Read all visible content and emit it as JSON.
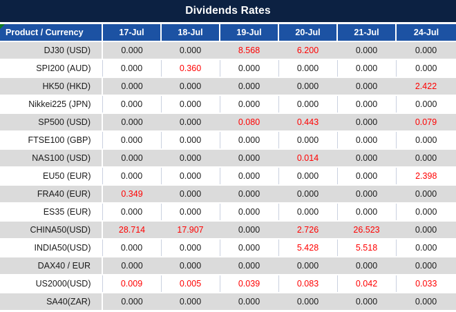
{
  "title": "Dividends Rates",
  "colors": {
    "title_bg": "#0c2142",
    "header_bg": "#1c52a3",
    "row_alt_bg": "#dbdbdb",
    "nonzero_value": "#ff0000",
    "text": "#1a1a1a",
    "error_indicator": "#0e7c1f"
  },
  "table": {
    "product_header": "Product / Currency",
    "date_columns": [
      "17-Jul",
      "18-Jul",
      "19-Jul",
      "20-Jul",
      "21-Jul",
      "24-Jul"
    ],
    "zero_value": "0.000",
    "rows": [
      {
        "product": "DJ30 (USD)",
        "values": [
          "0.000",
          "0.000",
          "8.568",
          "6.200",
          "0.000",
          "0.000"
        ]
      },
      {
        "product": "SPI200 (AUD)",
        "values": [
          "0.000",
          "0.360",
          "0.000",
          "0.000",
          "0.000",
          "0.000"
        ]
      },
      {
        "product": "HK50 (HKD)",
        "values": [
          "0.000",
          "0.000",
          "0.000",
          "0.000",
          "0.000",
          "2.422"
        ]
      },
      {
        "product": "Nikkei225 (JPN)",
        "values": [
          "0.000",
          "0.000",
          "0.000",
          "0.000",
          "0.000",
          "0.000"
        ]
      },
      {
        "product": "SP500 (USD)",
        "values": [
          "0.000",
          "0.000",
          "0.080",
          "0.443",
          "0.000",
          "0.079"
        ]
      },
      {
        "product": "FTSE100 (GBP)",
        "values": [
          "0.000",
          "0.000",
          "0.000",
          "0.000",
          "0.000",
          "0.000"
        ]
      },
      {
        "product": "NAS100 (USD)",
        "values": [
          "0.000",
          "0.000",
          "0.000",
          "0.014",
          "0.000",
          "0.000"
        ]
      },
      {
        "product": "EU50 (EUR)",
        "values": [
          "0.000",
          "0.000",
          "0.000",
          "0.000",
          "0.000",
          "2.398"
        ]
      },
      {
        "product": "FRA40 (EUR)",
        "values": [
          "0.349",
          "0.000",
          "0.000",
          "0.000",
          "0.000",
          "0.000"
        ]
      },
      {
        "product": "ES35 (EUR)",
        "values": [
          "0.000",
          "0.000",
          "0.000",
          "0.000",
          "0.000",
          "0.000"
        ]
      },
      {
        "product": "CHINA50(USD)",
        "values": [
          "28.714",
          "17.907",
          "0.000",
          "2.726",
          "26.523",
          "0.000"
        ]
      },
      {
        "product": "INDIA50(USD)",
        "values": [
          "0.000",
          "0.000",
          "0.000",
          "5.428",
          "5.518",
          "0.000"
        ]
      },
      {
        "product": "DAX40 / EUR",
        "values": [
          "0.000",
          "0.000",
          "0.000",
          "0.000",
          "0.000",
          "0.000"
        ]
      },
      {
        "product": "US2000(USD)",
        "values": [
          "0.009",
          "0.005",
          "0.039",
          "0.083",
          "0.042",
          "0.033"
        ]
      },
      {
        "product": "SA40(ZAR)",
        "values": [
          "0.000",
          "0.000",
          "0.000",
          "0.000",
          "0.000",
          "0.000"
        ]
      }
    ]
  }
}
